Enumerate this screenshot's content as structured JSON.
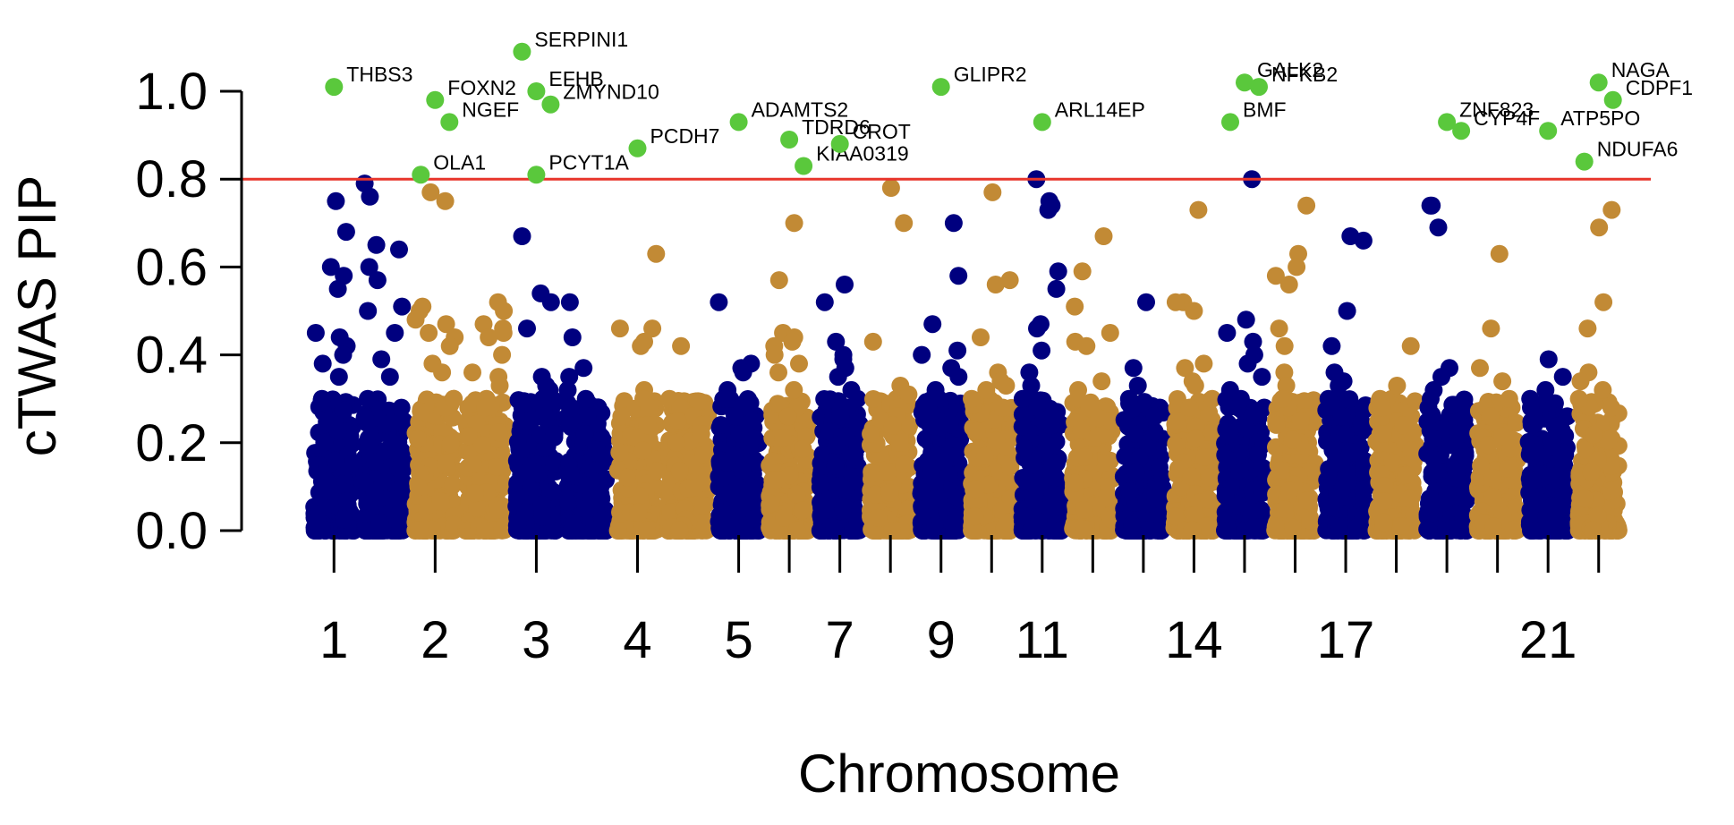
{
  "chart_data": {
    "type": "scatter",
    "title": "",
    "xlabel": "Chromosome",
    "ylabel": "cTWAS PIP",
    "ylim": [
      0,
      1.1
    ],
    "yticks": [
      "0.0",
      "0.2",
      "0.4",
      "0.6",
      "0.8",
      "1.0"
    ],
    "threshold": 0.8,
    "colors": {
      "odd_chromosome": "#00007f",
      "even_chromosome": "#c28a35",
      "highlight": "#5ac83c",
      "threshold_line": "#e8352b"
    },
    "chromosome_labels": [
      "1",
      "2",
      "3",
      "4",
      "5",
      "7",
      "9",
      "11",
      "14",
      "17",
      "21"
    ],
    "chromosomes": [
      {
        "chr": 1,
        "color": "odd",
        "top": [
          0.75,
          0.68,
          0.6,
          0.58,
          0.55,
          0.45,
          0.44,
          0.42,
          0.4,
          0.38,
          0.35,
          0.3
        ]
      },
      {
        "chr": 1,
        "color": "odd",
        "top": [
          0.79,
          0.76,
          0.65,
          0.64,
          0.6,
          0.57,
          0.51,
          0.5,
          0.45,
          0.39,
          0.35,
          0.3
        ]
      },
      {
        "chr": 2,
        "color": "even",
        "top": [
          0.77,
          0.75,
          0.51,
          0.5,
          0.48,
          0.47,
          0.45,
          0.44,
          0.42,
          0.38,
          0.36,
          0.3
        ]
      },
      {
        "chr": 2,
        "color": "even",
        "top": [
          0.52,
          0.5,
          0.47,
          0.46,
          0.45,
          0.44,
          0.4,
          0.36,
          0.35,
          0.33,
          0.3,
          0.28
        ]
      },
      {
        "chr": 3,
        "color": "odd",
        "top": [
          0.67,
          0.54,
          0.52,
          0.46,
          0.35,
          0.33,
          0.32,
          0.3,
          0.28,
          0.25,
          0.22
        ]
      },
      {
        "chr": 3,
        "color": "odd",
        "top": [
          0.52,
          0.44,
          0.37,
          0.35,
          0.32,
          0.3,
          0.28,
          0.26,
          0.24,
          0.22
        ]
      },
      {
        "chr": 4,
        "color": "even",
        "top": [
          0.63,
          0.46,
          0.46,
          0.43,
          0.42,
          0.32,
          0.3,
          0.28,
          0.26,
          0.24
        ]
      },
      {
        "chr": 4,
        "color": "even",
        "top": [
          0.42,
          0.3,
          0.28,
          0.26,
          0.25,
          0.24,
          0.22,
          0.2
        ]
      },
      {
        "chr": 5,
        "color": "odd",
        "top": [
          0.52,
          0.38,
          0.37,
          0.36,
          0.32,
          0.3,
          0.28,
          0.26,
          0.24,
          0.22
        ]
      },
      {
        "chr": 6,
        "color": "even",
        "top": [
          0.7,
          0.57,
          0.45,
          0.44,
          0.43,
          0.42,
          0.4,
          0.38,
          0.36,
          0.32,
          0.28,
          0.26
        ]
      },
      {
        "chr": 7,
        "color": "odd",
        "top": [
          0.56,
          0.52,
          0.43,
          0.4,
          0.39,
          0.37,
          0.35,
          0.32,
          0.3,
          0.28,
          0.26
        ]
      },
      {
        "chr": 8,
        "color": "even",
        "top": [
          0.78,
          0.7,
          0.43,
          0.33,
          0.31,
          0.28,
          0.26,
          0.24,
          0.22,
          0.2
        ]
      },
      {
        "chr": 9,
        "color": "odd",
        "top": [
          0.7,
          0.58,
          0.47,
          0.41,
          0.4,
          0.37,
          0.35,
          0.32,
          0.3,
          0.28
        ]
      },
      {
        "chr": 10,
        "color": "even",
        "top": [
          0.77,
          0.57,
          0.56,
          0.44,
          0.36,
          0.34,
          0.33,
          0.32,
          0.3,
          0.28
        ]
      },
      {
        "chr": 11,
        "color": "odd",
        "top": [
          0.8,
          0.75,
          0.74,
          0.73,
          0.59,
          0.55,
          0.47,
          0.46,
          0.41,
          0.36,
          0.33,
          0.3
        ]
      },
      {
        "chr": 12,
        "color": "even",
        "top": [
          0.67,
          0.59,
          0.51,
          0.45,
          0.43,
          0.42,
          0.34,
          0.32,
          0.3,
          0.28
        ]
      },
      {
        "chr": 13,
        "color": "odd",
        "top": [
          0.52,
          0.37,
          0.33,
          0.3,
          0.28,
          0.26,
          0.24,
          0.22
        ]
      },
      {
        "chr": 14,
        "color": "even",
        "top": [
          0.73,
          0.52,
          0.52,
          0.5,
          0.38,
          0.37,
          0.34,
          0.33,
          0.3,
          0.28
        ]
      },
      {
        "chr": 15,
        "color": "odd",
        "top": [
          0.8,
          0.48,
          0.45,
          0.43,
          0.4,
          0.38,
          0.35,
          0.32,
          0.3,
          0.28
        ]
      },
      {
        "chr": 16,
        "color": "even",
        "top": [
          0.74,
          0.63,
          0.6,
          0.58,
          0.56,
          0.46,
          0.42,
          0.36,
          0.33,
          0.3
        ]
      },
      {
        "chr": 17,
        "color": "odd",
        "top": [
          0.67,
          0.66,
          0.5,
          0.42,
          0.36,
          0.34,
          0.33,
          0.3,
          0.28,
          0.26
        ]
      },
      {
        "chr": 18,
        "color": "even",
        "top": [
          0.42,
          0.33,
          0.3,
          0.28,
          0.26,
          0.24,
          0.22
        ]
      },
      {
        "chr": 19,
        "color": "odd",
        "top": [
          0.74,
          0.74,
          0.69,
          0.37,
          0.35,
          0.32,
          0.3,
          0.28
        ]
      },
      {
        "chr": 20,
        "color": "even",
        "top": [
          0.63,
          0.46,
          0.37,
          0.34,
          0.3,
          0.28,
          0.26
        ]
      },
      {
        "chr": 21,
        "color": "odd",
        "top": [
          0.39,
          0.35,
          0.32,
          0.3,
          0.28,
          0.26
        ]
      },
      {
        "chr": 22,
        "color": "even",
        "top": [
          0.73,
          0.69,
          0.52,
          0.46,
          0.36,
          0.34,
          0.32,
          0.3,
          0.28
        ]
      }
    ],
    "highlighted_genes": [
      {
        "gene": "THBS3",
        "pip": 1.01,
        "chr": 1
      },
      {
        "gene": "FOXN2",
        "pip": 0.98,
        "chr": 2
      },
      {
        "gene": "EFHB",
        "pip": 1.0,
        "chr": 3
      },
      {
        "gene": "ZMYND10",
        "pip": 0.97,
        "chr": 3
      },
      {
        "gene": "NGEF",
        "pip": 0.93,
        "chr": 2
      },
      {
        "gene": "OLA1",
        "pip": 0.81,
        "chr": 2
      },
      {
        "gene": "SERPINI1",
        "pip": 1.09,
        "chr": 3
      },
      {
        "gene": "PCDH7",
        "pip": 0.87,
        "chr": 4
      },
      {
        "gene": "PCYT1A",
        "pip": 0.81,
        "chr": 3
      },
      {
        "gene": "ADAMTS2",
        "pip": 0.93,
        "chr": 5
      },
      {
        "gene": "TDRD6",
        "pip": 0.89,
        "chr": 6
      },
      {
        "gene": "KIAA0319",
        "pip": 0.83,
        "chr": 6
      },
      {
        "gene": "CROT",
        "pip": 0.88,
        "chr": 7
      },
      {
        "gene": "GLIPR2",
        "pip": 1.01,
        "chr": 9
      },
      {
        "gene": "ARL14EP",
        "pip": 0.93,
        "chr": 11
      },
      {
        "gene": "GALK2",
        "pip": 1.02,
        "chr": 15
      },
      {
        "gene": "NFKB2",
        "pip": 1.01,
        "chr": 15
      },
      {
        "gene": "BMF",
        "pip": 0.93,
        "chr": 15
      },
      {
        "gene": "ZNF823",
        "pip": 0.93,
        "chr": 19
      },
      {
        "gene": "CYP4F",
        "pip": 0.91,
        "chr": 19
      },
      {
        "gene": "ATP5PO",
        "pip": 0.91,
        "chr": 21
      },
      {
        "gene": "NAGA",
        "pip": 1.02,
        "chr": 22
      },
      {
        "gene": "CDPF1",
        "pip": 0.98,
        "chr": 22
      },
      {
        "gene": "NDUFA6",
        "pip": 0.84,
        "chr": 22
      }
    ]
  }
}
